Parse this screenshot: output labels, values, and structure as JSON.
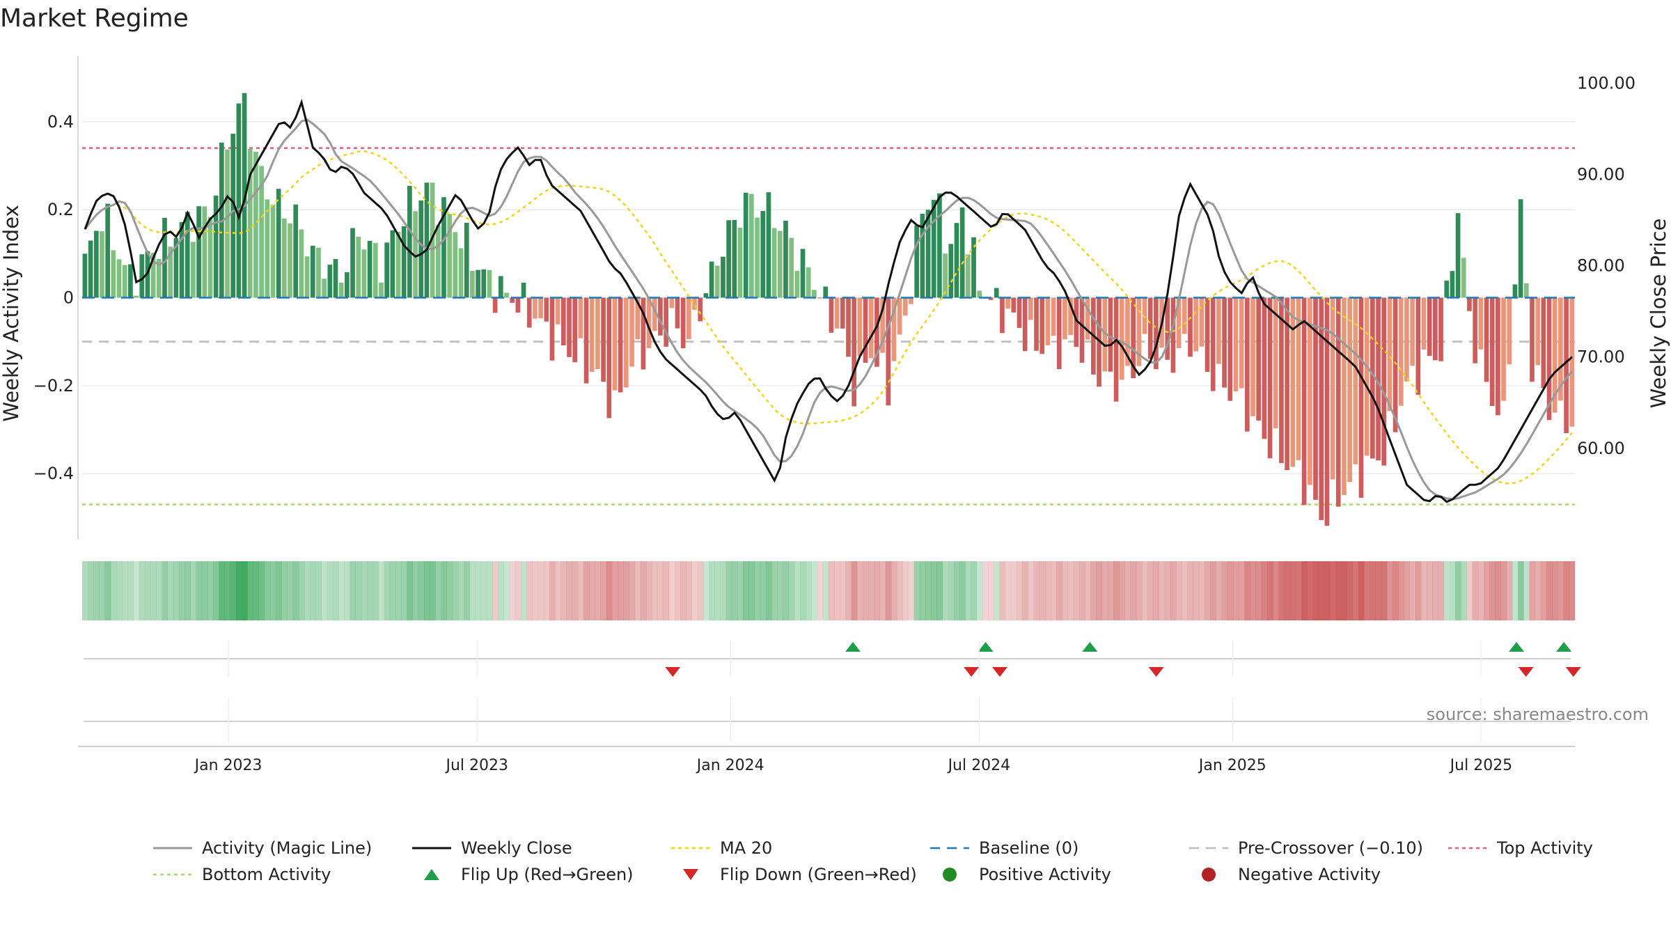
{
  "chart_data": {
    "type": "bar+line",
    "title": "Market Regime",
    "ylabel_left": "Weekly Activity Index",
    "ylabel_right": "Weekly Close Price",
    "source": "source: sharemaestro.com",
    "left_axis": {
      "ylim": [
        -0.55,
        0.55
      ],
      "ticks": [
        0.4,
        0.2,
        0,
        -0.2,
        -0.4
      ],
      "tick_labels": [
        "0.4",
        "0.2",
        "0",
        "−0.2",
        "−0.4"
      ]
    },
    "right_axis": {
      "ylim": [
        50,
        103
      ],
      "ticks": [
        100,
        90,
        80,
        70,
        60
      ],
      "tick_labels": [
        "100.00",
        "90.00",
        "80.00",
        "70.00",
        "60.00"
      ]
    },
    "x_ticks": [
      {
        "label": "Jan 2023",
        "week": 30
      },
      {
        "label": "Jul 2023",
        "week": 82
      },
      {
        "label": "Jan 2024",
        "week": 135
      },
      {
        "label": "Jul 2024",
        "week": 187
      },
      {
        "label": "Jan 2025",
        "week": 240
      },
      {
        "label": "Jul 2025",
        "week": 292
      }
    ],
    "reference_lines": {
      "baseline": 0,
      "pre_crossover": -0.1,
      "top_activity": 0.34,
      "bottom_activity": -0.47
    },
    "anchors": {
      "activity": [
        [
          0,
          0.08
        ],
        [
          3,
          0.19
        ],
        [
          8,
          0.04
        ],
        [
          12,
          0.11
        ],
        [
          17,
          0.16
        ],
        [
          22,
          0.2
        ],
        [
          25,
          0.36
        ],
        [
          28,
          0.45
        ],
        [
          30,
          0.31
        ],
        [
          33,
          0.22
        ],
        [
          37,
          0.18
        ],
        [
          40,
          0.1
        ],
        [
          45,
          0.05
        ],
        [
          48,
          0.15
        ],
        [
          52,
          0.08
        ],
        [
          56,
          0.19
        ],
        [
          60,
          0.25
        ],
        [
          63,
          0.2
        ],
        [
          66,
          0.14
        ],
        [
          69,
          0.07
        ],
        [
          72,
          0.02
        ],
        [
          75,
          0.0
        ],
        [
          78,
          -0.03
        ],
        [
          82,
          -0.09
        ],
        [
          86,
          -0.13
        ],
        [
          90,
          -0.18
        ],
        [
          93,
          -0.25
        ],
        [
          96,
          -0.15
        ],
        [
          100,
          -0.1
        ],
        [
          103,
          -0.06
        ],
        [
          106,
          -0.1
        ],
        [
          108,
          -0.02
        ],
        [
          112,
          0.12
        ],
        [
          116,
          0.22
        ],
        [
          120,
          0.2
        ],
        [
          123,
          0.15
        ],
        [
          126,
          0.08
        ],
        [
          128,
          0.04
        ],
        [
          130,
          -0.02
        ],
        [
          133,
          -0.09
        ],
        [
          135,
          -0.2
        ],
        [
          138,
          -0.12
        ],
        [
          141,
          -0.2
        ],
        [
          144,
          -0.05
        ],
        [
          147,
          0.2
        ],
        [
          149,
          0.23
        ],
        [
          152,
          0.11
        ],
        [
          154,
          0.2
        ],
        [
          157,
          0.03
        ],
        [
          160,
          -0.02
        ],
        [
          163,
          -0.05
        ],
        [
          166,
          -0.1
        ],
        [
          170,
          -0.12
        ],
        [
          174,
          -0.1
        ],
        [
          178,
          -0.18
        ],
        [
          182,
          -0.2
        ],
        [
          186,
          -0.12
        ],
        [
          190,
          -0.15
        ],
        [
          194,
          -0.1
        ],
        [
          198,
          -0.18
        ],
        [
          202,
          -0.22
        ],
        [
          206,
          -0.3
        ],
        [
          210,
          -0.36
        ],
        [
          214,
          -0.42
        ],
        [
          217,
          -0.5
        ],
        [
          220,
          -0.45
        ],
        [
          224,
          -0.4
        ],
        [
          228,
          -0.35
        ],
        [
          232,
          -0.2
        ],
        [
          235,
          -0.15
        ],
        [
          238,
          -0.12
        ],
        [
          241,
          0.2
        ],
        [
          243,
          -0.05
        ],
        [
          246,
          -0.2
        ],
        [
          249,
          -0.28
        ],
        [
          252,
          0.2
        ],
        [
          254,
          -0.15
        ],
        [
          257,
          -0.25
        ],
        [
          260,
          -0.28
        ]
      ],
      "weekly_close": [
        [
          0,
          84
        ],
        [
          1,
          87
        ],
        [
          2,
          88
        ],
        [
          3,
          87.5
        ],
        [
          4,
          84
        ],
        [
          5,
          78
        ],
        [
          6,
          79
        ],
        [
          7,
          82
        ],
        [
          8,
          84
        ],
        [
          9,
          83
        ],
        [
          10,
          86
        ],
        [
          11,
          83
        ],
        [
          12,
          85
        ],
        [
          13,
          86
        ],
        [
          14,
          88
        ],
        [
          15,
          85
        ],
        [
          16,
          90
        ],
        [
          17,
          92
        ],
        [
          18,
          94
        ],
        [
          19,
          96
        ],
        [
          20,
          95
        ],
        [
          21,
          98
        ],
        [
          22,
          93
        ],
        [
          23,
          92
        ],
        [
          24,
          90
        ],
        [
          25,
          91
        ],
        [
          26,
          90
        ],
        [
          27,
          88
        ],
        [
          28,
          87
        ],
        [
          29,
          86
        ],
        [
          30,
          84
        ],
        [
          31,
          82
        ],
        [
          32,
          81
        ],
        [
          33,
          81.5
        ],
        [
          34,
          84
        ],
        [
          35,
          86
        ],
        [
          36,
          88
        ],
        [
          37,
          86
        ],
        [
          38,
          84
        ],
        [
          39,
          85
        ],
        [
          40,
          90
        ],
        [
          41,
          92
        ],
        [
          42,
          93
        ],
        [
          43,
          91
        ],
        [
          44,
          92
        ],
        [
          45,
          89
        ],
        [
          46,
          88
        ],
        [
          47,
          87
        ],
        [
          48,
          86
        ],
        [
          49,
          84
        ],
        [
          50,
          82
        ],
        [
          51,
          80
        ],
        [
          52,
          79
        ],
        [
          53,
          77
        ],
        [
          54,
          75
        ],
        [
          55,
          72
        ],
        [
          56,
          70
        ],
        [
          57,
          69
        ],
        [
          58,
          68
        ],
        [
          59,
          67
        ],
        [
          60,
          66
        ],
        [
          61,
          64
        ],
        [
          62,
          63
        ],
        [
          63,
          64
        ],
        [
          64,
          62
        ],
        [
          65,
          60
        ],
        [
          66,
          58
        ],
        [
          67,
          56
        ],
        [
          68,
          62
        ],
        [
          69,
          65
        ],
        [
          70,
          67
        ],
        [
          71,
          68
        ],
        [
          72,
          66
        ],
        [
          73,
          65
        ],
        [
          74,
          67
        ],
        [
          75,
          70
        ],
        [
          76,
          72
        ],
        [
          77,
          74
        ],
        [
          78,
          79
        ],
        [
          79,
          83
        ],
        [
          80,
          85
        ],
        [
          81,
          84
        ],
        [
          82,
          86
        ],
        [
          83,
          88
        ],
        [
          84,
          88
        ],
        [
          85,
          87
        ],
        [
          86,
          86
        ],
        [
          87,
          85
        ],
        [
          88,
          84
        ],
        [
          89,
          86
        ],
        [
          90,
          85
        ],
        [
          91,
          84
        ],
        [
          92,
          82
        ],
        [
          93,
          80
        ],
        [
          94,
          79
        ],
        [
          95,
          77
        ],
        [
          96,
          74
        ],
        [
          97,
          73
        ],
        [
          98,
          72
        ],
        [
          99,
          71
        ],
        [
          100,
          72
        ],
        [
          101,
          70
        ],
        [
          102,
          68
        ],
        [
          103,
          69
        ],
        [
          104,
          72
        ],
        [
          105,
          78
        ],
        [
          106,
          86
        ],
        [
          107,
          89
        ],
        [
          108,
          87
        ],
        [
          109,
          85
        ],
        [
          110,
          80
        ],
        [
          111,
          78
        ],
        [
          112,
          77
        ],
        [
          113,
          79
        ],
        [
          114,
          76
        ],
        [
          115,
          75
        ],
        [
          116,
          74
        ],
        [
          117,
          73
        ],
        [
          118,
          74
        ],
        [
          119,
          73
        ],
        [
          120,
          72
        ],
        [
          121,
          71
        ],
        [
          122,
          70
        ],
        [
          123,
          69
        ],
        [
          124,
          67
        ],
        [
          125,
          65
        ],
        [
          126,
          62
        ],
        [
          127,
          59
        ],
        [
          128,
          56
        ],
        [
          129,
          55
        ],
        [
          130,
          54
        ],
        [
          131,
          55
        ],
        [
          132,
          54
        ],
        [
          133,
          55
        ],
        [
          134,
          56
        ],
        [
          135,
          56
        ],
        [
          136,
          57
        ],
        [
          137,
          58
        ],
        [
          138,
          60
        ],
        [
          139,
          62
        ],
        [
          140,
          64
        ],
        [
          141,
          66
        ],
        [
          142,
          68
        ],
        [
          143,
          69
        ],
        [
          144,
          70
        ]
      ]
    },
    "legend": [
      "Activity (Magic Line)",
      "Weekly Close",
      "MA 20",
      "Baseline (0)",
      "Pre-Crossover (−0.10)",
      "Top Activity",
      "Bottom Activity",
      "Flip Up (Red→Green)",
      "Flip Down (Green→Red)",
      "Positive Activity",
      "Negative Activity"
    ],
    "flip_up_weeks": [
      162,
      190,
      212,
      302,
      312
    ],
    "flip_down_weeks": [
      124,
      187,
      193,
      226,
      304,
      314
    ],
    "colors": {
      "pos_dark": "#2e8b57",
      "pos_light": "#7fbf7f",
      "neg_dark": "#cd5c5c",
      "neg_light": "#e9967a",
      "magic_line": "#999999",
      "close": "#111111",
      "ma20": "#f2d31b",
      "baseline": "#1f77b4",
      "pre_crossover": "#bbbbbb",
      "top_activity": "#e0607e",
      "bottom_activity": "#a8d86b",
      "flip_up": "#1f9e4a",
      "flip_down": "#d62728",
      "positive_dot": "#228b22",
      "negative_dot": "#b22222"
    }
  }
}
